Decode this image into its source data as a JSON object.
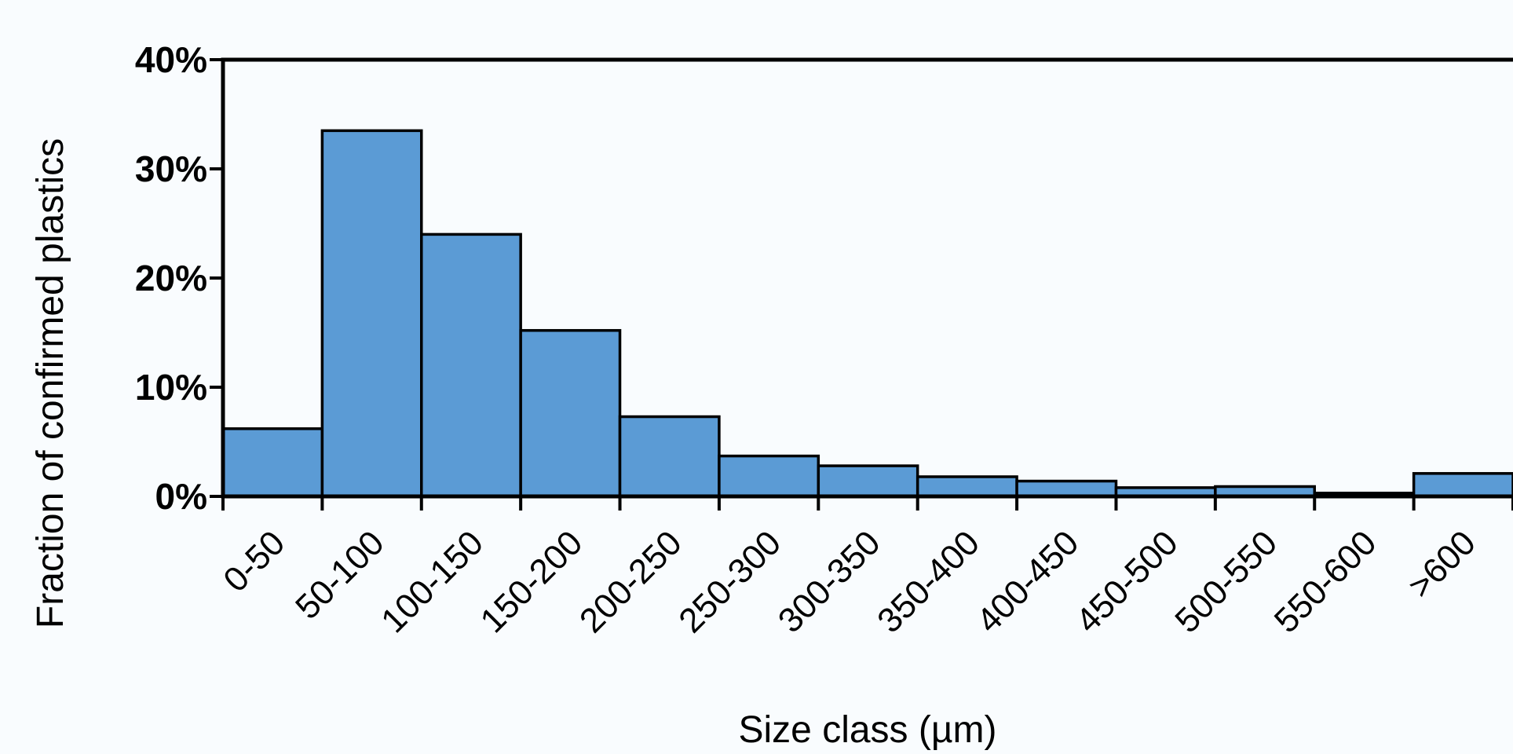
{
  "chart_data": {
    "type": "bar",
    "xlabel": "Size class (µm)",
    "ylabel": "Fraction of confirmed plastics",
    "categories": [
      "0-50",
      "50-100",
      "100-150",
      "150-200",
      "200-250",
      "250-300",
      "300-350",
      "350-400",
      "400-450",
      "450-500",
      "500-550",
      "550-600",
      ">600"
    ],
    "values": [
      6.2,
      33.5,
      24.0,
      15.2,
      7.3,
      3.7,
      2.8,
      1.8,
      1.4,
      0.8,
      0.9,
      0.3,
      2.1
    ],
    "ylim": [
      0,
      40
    ],
    "yticks": [
      "0%",
      "10%",
      "20%",
      "30%",
      "40%"
    ],
    "ytick_values": [
      0,
      10,
      20,
      30,
      40
    ],
    "grid": false,
    "legend": "none",
    "bar_color": "#5b9bd5",
    "edge_color": "#000000"
  }
}
